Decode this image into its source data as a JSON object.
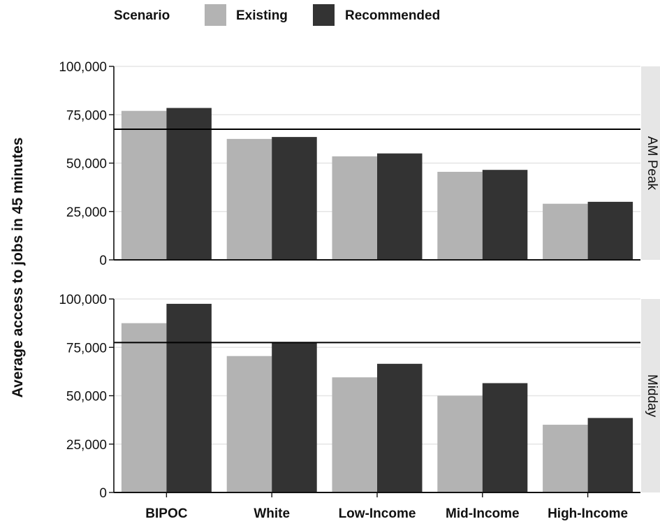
{
  "legend": {
    "title": "Scenario",
    "items": [
      {
        "label": "Existing",
        "color": "#b3b3b3"
      },
      {
        "label": "Recommended",
        "color": "#333333"
      }
    ]
  },
  "chart_data": {
    "type": "bar",
    "ylabel": "Average access to jobs in 45 minutes",
    "xlabel": "",
    "categories": [
      "BIPOC",
      "White",
      "Low-Income",
      "Mid-Income",
      "High-Income"
    ],
    "ylim": [
      0,
      100000
    ],
    "yticks": [
      0,
      25000,
      50000,
      75000,
      100000
    ],
    "ytick_labels": [
      "0",
      "25,000",
      "50,000",
      "75,000",
      "100,000"
    ],
    "grid": true,
    "legend_position": "top",
    "panels": [
      {
        "label": "AM Peak",
        "reference_line": 67500,
        "series": [
          {
            "name": "Existing",
            "color": "#b3b3b3",
            "values": [
              77000,
              62500,
              53500,
              45500,
              29000
            ]
          },
          {
            "name": "Recommended",
            "color": "#333333",
            "values": [
              78500,
              63500,
              55000,
              46500,
              30000
            ]
          }
        ]
      },
      {
        "label": "Midday",
        "reference_line": 77500,
        "series": [
          {
            "name": "Existing",
            "color": "#b3b3b3",
            "values": [
              87500,
              70500,
              59500,
              50000,
              35000
            ]
          },
          {
            "name": "Recommended",
            "color": "#333333",
            "values": [
              97500,
              77500,
              66500,
              56500,
              38500
            ]
          }
        ]
      }
    ]
  }
}
